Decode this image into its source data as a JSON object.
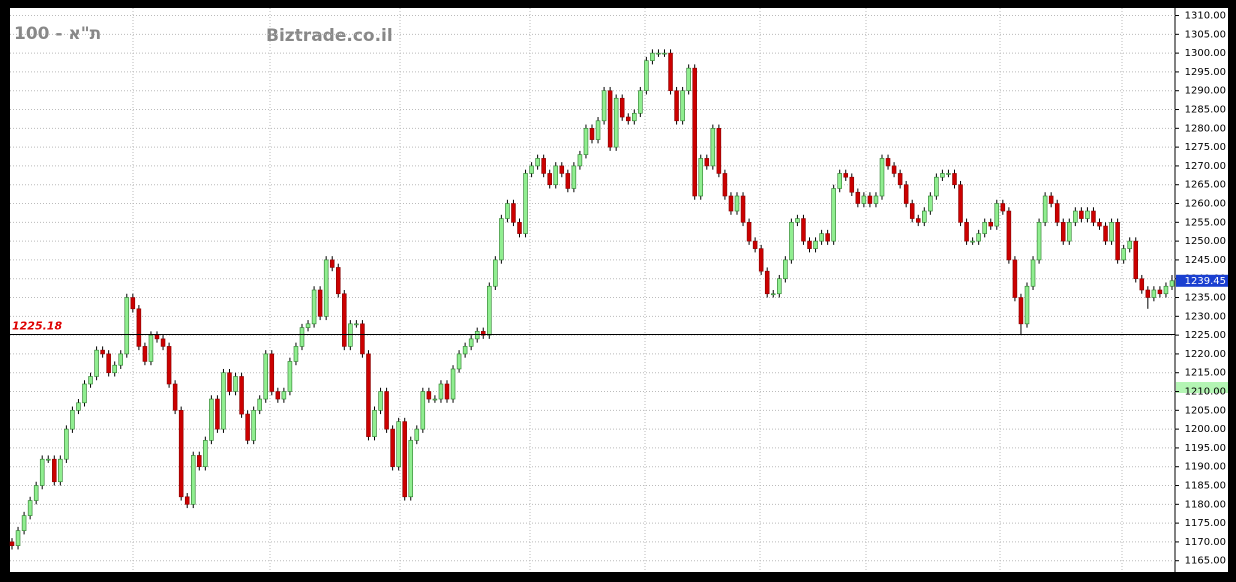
{
  "chart_data": {
    "type": "candlestick",
    "title": "ת\"א - 100",
    "subtitle": "Biztrade.co.il",
    "up_color": "#90ee90",
    "down_color": "#cc0000",
    "grid": true,
    "ylim": [
      1162,
      1312
    ],
    "yticks": [
      {
        "value": 1165,
        "label": "1165.00"
      },
      {
        "value": 1170,
        "label": "1170.00"
      },
      {
        "value": 1175,
        "label": "1175.00"
      },
      {
        "value": 1180,
        "label": "1180.00"
      },
      {
        "value": 1185,
        "label": "1185.00"
      },
      {
        "value": 1190,
        "label": "1190.00"
      },
      {
        "value": 1195,
        "label": "1195.00"
      },
      {
        "value": 1200,
        "label": "1200.00"
      },
      {
        "value": 1205,
        "label": "1205.00"
      },
      {
        "value": 1210,
        "label": "1210.00"
      },
      {
        "value": 1215,
        "label": "1215.00"
      },
      {
        "value": 1220,
        "label": "1220.00"
      },
      {
        "value": 1225,
        "label": "1225.00"
      },
      {
        "value": 1230,
        "label": "1230.00"
      },
      {
        "value": 1235,
        "label": "1235.00"
      },
      {
        "value": 1240,
        "label": "1240.00"
      },
      {
        "value": 1245,
        "label": "1245.00"
      },
      {
        "value": 1250,
        "label": "1250.00"
      },
      {
        "value": 1255,
        "label": "1255.00"
      },
      {
        "value": 1260,
        "label": "1260.00"
      },
      {
        "value": 1265,
        "label": "1265.00"
      },
      {
        "value": 1270,
        "label": "1270.00"
      },
      {
        "value": 1275,
        "label": "1275.00"
      },
      {
        "value": 1280,
        "label": "1280.00"
      },
      {
        "value": 1285,
        "label": "1285.00"
      },
      {
        "value": 1290,
        "label": "1290.00"
      },
      {
        "value": 1295,
        "label": "1295.00"
      },
      {
        "value": 1300,
        "label": "1300.00"
      },
      {
        "value": 1305,
        "label": "1305.00"
      },
      {
        "value": 1310,
        "label": "1310.00"
      }
    ],
    "reference_line": {
      "value": 1225.18,
      "label": "1225.18"
    },
    "last_label": "1239.45",
    "ohlc": [
      [
        1170,
        1171,
        1168,
        1169
      ],
      [
        1169,
        1174,
        1168,
        1173
      ],
      [
        1173,
        1178,
        1172,
        1177
      ],
      [
        1177,
        1182,
        1176,
        1181
      ],
      [
        1181,
        1186,
        1180,
        1185
      ],
      [
        1185,
        1193,
        1184,
        1192
      ],
      [
        1192,
        1193,
        1191,
        1192
      ],
      [
        1192,
        1193,
        1185,
        1186
      ],
      [
        1186,
        1193,
        1185,
        1192
      ],
      [
        1192,
        1201,
        1191,
        1200
      ],
      [
        1200,
        1206,
        1199,
        1205
      ],
      [
        1205,
        1208,
        1204,
        1207
      ],
      [
        1207,
        1213,
        1206,
        1212
      ],
      [
        1212,
        1215,
        1211,
        1214
      ],
      [
        1214,
        1222,
        1213,
        1221
      ],
      [
        1221,
        1222,
        1219,
        1220
      ],
      [
        1220,
        1221,
        1214,
        1215
      ],
      [
        1215,
        1218,
        1214,
        1217
      ],
      [
        1217,
        1221,
        1216,
        1220
      ],
      [
        1220,
        1236,
        1219,
        1235
      ],
      [
        1235,
        1236,
        1231,
        1232
      ],
      [
        1232,
        1233,
        1221,
        1222
      ],
      [
        1222,
        1223,
        1217,
        1218
      ],
      [
        1218,
        1226,
        1217,
        1225
      ],
      [
        1225,
        1226,
        1223,
        1224
      ],
      [
        1224,
        1225,
        1221,
        1222
      ],
      [
        1222,
        1223,
        1211,
        1212
      ],
      [
        1212,
        1213,
        1204,
        1205
      ],
      [
        1205,
        1206,
        1181,
        1182
      ],
      [
        1182,
        1183,
        1179,
        1180
      ],
      [
        1180,
        1194,
        1179,
        1193
      ],
      [
        1193,
        1194,
        1189,
        1190
      ],
      [
        1190,
        1198,
        1189,
        1197
      ],
      [
        1197,
        1209,
        1196,
        1208
      ],
      [
        1208,
        1209,
        1199,
        1200
      ],
      [
        1200,
        1216,
        1199,
        1215
      ],
      [
        1215,
        1216,
        1209,
        1210
      ],
      [
        1210,
        1215,
        1209,
        1214
      ],
      [
        1214,
        1215,
        1203,
        1204
      ],
      [
        1204,
        1205,
        1196,
        1197
      ],
      [
        1197,
        1206,
        1196,
        1205
      ],
      [
        1205,
        1209,
        1204,
        1208
      ],
      [
        1208,
        1221,
        1207,
        1220
      ],
      [
        1220,
        1221,
        1209,
        1210
      ],
      [
        1210,
        1211,
        1207,
        1208
      ],
      [
        1208,
        1211,
        1207,
        1210
      ],
      [
        1210,
        1219,
        1209,
        1218
      ],
      [
        1218,
        1223,
        1217,
        1222
      ],
      [
        1222,
        1228,
        1221,
        1227
      ],
      [
        1227,
        1229,
        1226,
        1228
      ],
      [
        1228,
        1238,
        1227,
        1237
      ],
      [
        1237,
        1238,
        1229,
        1230
      ],
      [
        1230,
        1246,
        1229,
        1245
      ],
      [
        1245,
        1246,
        1242,
        1243
      ],
      [
        1243,
        1244,
        1235,
        1236
      ],
      [
        1236,
        1237,
        1221,
        1222
      ],
      [
        1222,
        1229,
        1221,
        1228
      ],
      [
        1228,
        1229,
        1227,
        1228
      ],
      [
        1228,
        1229,
        1219,
        1220
      ],
      [
        1220,
        1221,
        1197,
        1198
      ],
      [
        1198,
        1206,
        1197,
        1205
      ],
      [
        1205,
        1211,
        1204,
        1210
      ],
      [
        1210,
        1211,
        1199,
        1200
      ],
      [
        1200,
        1201,
        1189,
        1190
      ],
      [
        1190,
        1203,
        1189,
        1202
      ],
      [
        1202,
        1203,
        1181,
        1182
      ],
      [
        1182,
        1198,
        1181,
        1197
      ],
      [
        1197,
        1201,
        1196,
        1200
      ],
      [
        1200,
        1211,
        1199,
        1210
      ],
      [
        1210,
        1211,
        1207,
        1208
      ],
      [
        1208,
        1209,
        1207,
        1208
      ],
      [
        1208,
        1213,
        1207,
        1212
      ],
      [
        1212,
        1213,
        1207,
        1208
      ],
      [
        1208,
        1217,
        1207,
        1216
      ],
      [
        1216,
        1221,
        1215,
        1220
      ],
      [
        1220,
        1223,
        1219,
        1222
      ],
      [
        1222,
        1225,
        1221,
        1224
      ],
      [
        1224,
        1227,
        1223,
        1226
      ],
      [
        1226,
        1227,
        1224,
        1225
      ],
      [
        1225,
        1239,
        1224,
        1238
      ],
      [
        1238,
        1246,
        1237,
        1245
      ],
      [
        1245,
        1257,
        1244,
        1256
      ],
      [
        1256,
        1261,
        1255,
        1260
      ],
      [
        1260,
        1261,
        1254,
        1255
      ],
      [
        1255,
        1256,
        1251,
        1252
      ],
      [
        1252,
        1269,
        1251,
        1268
      ],
      [
        1268,
        1271,
        1267,
        1270
      ],
      [
        1270,
        1273,
        1269,
        1272
      ],
      [
        1272,
        1273,
        1267,
        1268
      ],
      [
        1268,
        1269,
        1264,
        1265
      ],
      [
        1265,
        1271,
        1264,
        1270
      ],
      [
        1270,
        1271,
        1267,
        1268
      ],
      [
        1268,
        1269,
        1263,
        1264
      ],
      [
        1264,
        1271,
        1263,
        1270
      ],
      [
        1270,
        1274,
        1269,
        1273
      ],
      [
        1273,
        1281,
        1272,
        1280
      ],
      [
        1280,
        1281,
        1276,
        1277
      ],
      [
        1277,
        1283,
        1276,
        1282
      ],
      [
        1282,
        1291,
        1281,
        1290
      ],
      [
        1290,
        1291,
        1274,
        1275
      ],
      [
        1275,
        1289,
        1274,
        1288
      ],
      [
        1288,
        1289,
        1282,
        1283
      ],
      [
        1283,
        1284,
        1281,
        1282
      ],
      [
        1282,
        1285,
        1281,
        1284
      ],
      [
        1284,
        1291,
        1283,
        1290
      ],
      [
        1290,
        1299,
        1289,
        1298
      ],
      [
        1298,
        1301,
        1297,
        1300
      ],
      [
        1300,
        1301,
        1299,
        1300
      ],
      [
        1300,
        1301,
        1299,
        1300
      ],
      [
        1300,
        1301,
        1289,
        1290
      ],
      [
        1290,
        1291,
        1281,
        1282
      ],
      [
        1282,
        1291,
        1281,
        1290
      ],
      [
        1290,
        1297,
        1289,
        1296
      ],
      [
        1296,
        1297,
        1261,
        1262
      ],
      [
        1262,
        1273,
        1261,
        1272
      ],
      [
        1272,
        1273,
        1269,
        1270
      ],
      [
        1270,
        1281,
        1269,
        1280
      ],
      [
        1280,
        1281,
        1267,
        1268
      ],
      [
        1268,
        1269,
        1261,
        1262
      ],
      [
        1262,
        1263,
        1257,
        1258
      ],
      [
        1258,
        1263,
        1257,
        1262
      ],
      [
        1262,
        1263,
        1254,
        1255
      ],
      [
        1255,
        1256,
        1249,
        1250
      ],
      [
        1250,
        1251,
        1247,
        1248
      ],
      [
        1248,
        1249,
        1241,
        1242
      ],
      [
        1242,
        1243,
        1235,
        1236
      ],
      [
        1236,
        1237,
        1235,
        1236
      ],
      [
        1236,
        1241,
        1235,
        1240
      ],
      [
        1240,
        1246,
        1239,
        1245
      ],
      [
        1245,
        1256,
        1244,
        1255
      ],
      [
        1255,
        1257,
        1254,
        1256
      ],
      [
        1256,
        1257,
        1249,
        1250
      ],
      [
        1250,
        1251,
        1247,
        1248
      ],
      [
        1248,
        1251,
        1247,
        1250
      ],
      [
        1250,
        1253,
        1249,
        1252
      ],
      [
        1252,
        1253,
        1249,
        1250
      ],
      [
        1250,
        1265,
        1249,
        1264
      ],
      [
        1264,
        1269,
        1263,
        1268
      ],
      [
        1268,
        1269,
        1266,
        1267
      ],
      [
        1267,
        1268,
        1262,
        1263
      ],
      [
        1263,
        1264,
        1259,
        1260
      ],
      [
        1260,
        1263,
        1259,
        1262
      ],
      [
        1262,
        1263,
        1259,
        1260
      ],
      [
        1260,
        1263,
        1259,
        1262
      ],
      [
        1262,
        1273,
        1261,
        1272
      ],
      [
        1272,
        1273,
        1269,
        1270
      ],
      [
        1270,
        1271,
        1267,
        1268
      ],
      [
        1268,
        1269,
        1264,
        1265
      ],
      [
        1265,
        1266,
        1259,
        1260
      ],
      [
        1260,
        1261,
        1255,
        1256
      ],
      [
        1256,
        1257,
        1254,
        1255
      ],
      [
        1255,
        1259,
        1254,
        1258
      ],
      [
        1258,
        1263,
        1257,
        1262
      ],
      [
        1262,
        1268,
        1261,
        1267
      ],
      [
        1267,
        1269,
        1266,
        1268
      ],
      [
        1268,
        1269,
        1267,
        1268
      ],
      [
        1268,
        1269,
        1264,
        1265
      ],
      [
        1265,
        1266,
        1254,
        1255
      ],
      [
        1255,
        1256,
        1249,
        1250
      ],
      [
        1250,
        1251,
        1249,
        1250
      ],
      [
        1250,
        1253,
        1249,
        1252
      ],
      [
        1252,
        1256,
        1251,
        1255
      ],
      [
        1255,
        1256,
        1253,
        1254
      ],
      [
        1254,
        1261,
        1253,
        1260
      ],
      [
        1260,
        1261,
        1257,
        1258
      ],
      [
        1258,
        1259,
        1244,
        1245
      ],
      [
        1245,
        1246,
        1234,
        1235
      ],
      [
        1235,
        1236,
        1225,
        1228
      ],
      [
        1228,
        1239,
        1227,
        1238
      ],
      [
        1238,
        1246,
        1237,
        1245
      ],
      [
        1245,
        1256,
        1244,
        1255
      ],
      [
        1255,
        1263,
        1254,
        1262
      ],
      [
        1262,
        1263,
        1259,
        1260
      ],
      [
        1260,
        1261,
        1254,
        1255
      ],
      [
        1255,
        1256,
        1249,
        1250
      ],
      [
        1250,
        1256,
        1249,
        1255
      ],
      [
        1255,
        1259,
        1254,
        1258
      ],
      [
        1258,
        1259,
        1255,
        1256
      ],
      [
        1256,
        1259,
        1255,
        1258
      ],
      [
        1258,
        1259,
        1254,
        1255
      ],
      [
        1255,
        1256,
        1253,
        1254
      ],
      [
        1254,
        1255,
        1249,
        1250
      ],
      [
        1250,
        1256,
        1249,
        1255
      ],
      [
        1255,
        1256,
        1244,
        1245
      ],
      [
        1245,
        1249,
        1244,
        1248
      ],
      [
        1248,
        1251,
        1247,
        1250
      ],
      [
        1250,
        1251,
        1239,
        1240
      ],
      [
        1240,
        1241,
        1236,
        1237
      ],
      [
        1237,
        1238,
        1232,
        1235
      ],
      [
        1235,
        1238,
        1234,
        1237
      ],
      [
        1237,
        1238,
        1235,
        1236
      ],
      [
        1236,
        1239,
        1235,
        1238
      ],
      [
        1238,
        1241,
        1237,
        1239.45
      ]
    ]
  }
}
